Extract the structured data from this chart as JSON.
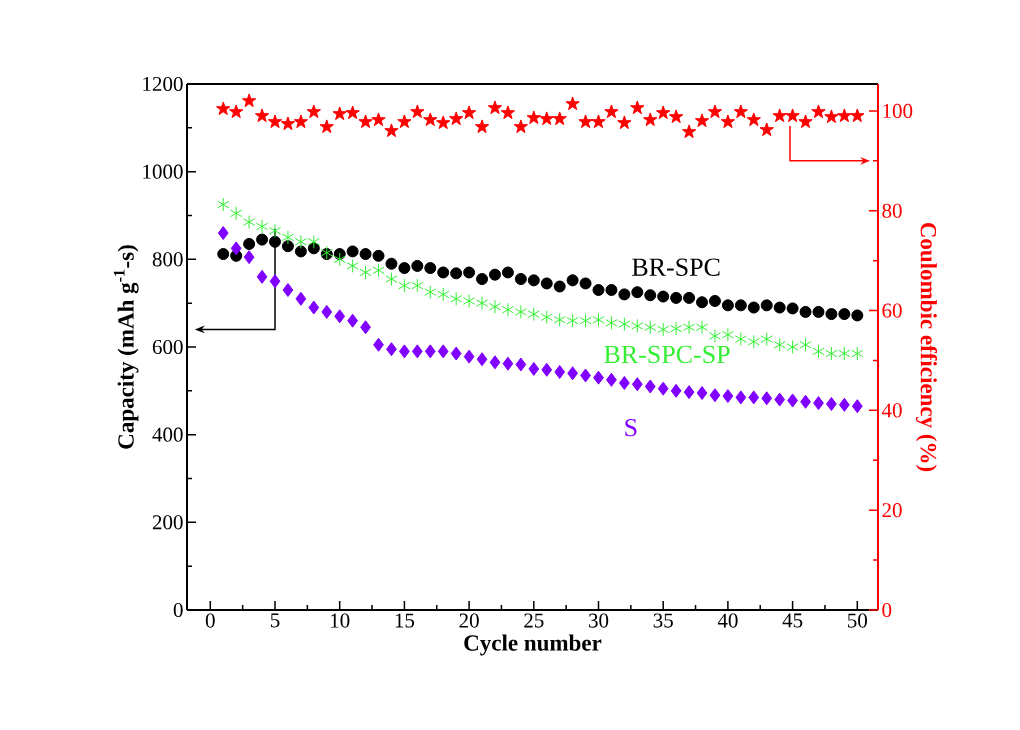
{
  "chart_data": {
    "type": "scatter",
    "xlabel": "Cycle number",
    "ylabel": "Capacity (mAh g$^{-1}$-s)",
    "y2label": "Coulombic efficiency (%)",
    "x": [
      1,
      2,
      3,
      4,
      5,
      6,
      7,
      8,
      9,
      10,
      11,
      12,
      13,
      14,
      15,
      16,
      17,
      18,
      19,
      20,
      21,
      22,
      23,
      24,
      25,
      26,
      27,
      28,
      29,
      30,
      31,
      32,
      33,
      34,
      35,
      36,
      37,
      38,
      39,
      40,
      41,
      42,
      43,
      44,
      45,
      46,
      47,
      48,
      49,
      50
    ],
    "xlim": [
      -1.8,
      51.6
    ],
    "xticks": [
      0,
      5,
      10,
      15,
      20,
      25,
      30,
      35,
      40,
      45,
      50
    ],
    "ylim": [
      0,
      1200
    ],
    "yticks": [
      0,
      200,
      400,
      600,
      800,
      1000,
      1200
    ],
    "y2lim": [
      0,
      105.4
    ],
    "y2ticks": [
      0,
      20,
      40,
      60,
      80,
      100
    ],
    "series": [
      {
        "name": "BR-SPC",
        "color": "#000000",
        "marker": "circle",
        "values": [
          812,
          808,
          835,
          845,
          840,
          830,
          818,
          825,
          812,
          812,
          818,
          812,
          808,
          790,
          780,
          785,
          780,
          770,
          768,
          770,
          755,
          765,
          770,
          755,
          752,
          745,
          738,
          752,
          745,
          730,
          730,
          720,
          725,
          718,
          715,
          712,
          712,
          702,
          705,
          695,
          695,
          690,
          695,
          690,
          688,
          680,
          680,
          675,
          675,
          672
        ]
      },
      {
        "name": "BR-SPC-SP",
        "color": "#33ee33",
        "marker": "cross",
        "values": [
          925,
          905,
          885,
          875,
          865,
          850,
          840,
          840,
          815,
          800,
          785,
          770,
          775,
          755,
          740,
          740,
          725,
          720,
          710,
          705,
          700,
          692,
          685,
          680,
          675,
          668,
          662,
          660,
          660,
          662,
          655,
          652,
          648,
          645,
          640,
          642,
          645,
          645,
          625,
          628,
          618,
          612,
          618,
          605,
          600,
          605,
          590,
          585,
          585,
          585
        ]
      },
      {
        "name": "S",
        "color": "#8000ff",
        "marker": "diamond",
        "values": [
          860,
          825,
          805,
          760,
          750,
          730,
          710,
          690,
          680,
          670,
          660,
          645,
          605,
          595,
          590,
          590,
          590,
          590,
          585,
          578,
          572,
          565,
          562,
          560,
          550,
          548,
          543,
          540,
          535,
          530,
          525,
          518,
          515,
          510,
          505,
          500,
          497,
          495,
          490,
          488,
          485,
          485,
          483,
          480,
          478,
          475,
          472,
          470,
          468,
          465
        ]
      },
      {
        "color": "#ff0000",
        "marker": "star",
        "axis": "y2",
        "values": [
          100.4,
          99.8,
          102,
          99,
          97.8,
          97.4,
          97.8,
          99.8,
          96.8,
          99.4,
          99.6,
          97.8,
          98.2,
          96,
          97.8,
          99.8,
          98.2,
          97.6,
          98.4,
          99.6,
          96.8,
          100.6,
          99.6,
          96.8,
          98.6,
          98.4,
          98.4,
          101.4,
          97.8,
          97.8,
          99.8,
          97.6,
          100.6,
          98.2,
          99.6,
          98.8,
          95.8,
          98,
          99.8,
          97.8,
          99.8,
          98.2,
          96.2,
          99,
          99,
          97.8,
          99.8,
          98.8,
          99,
          99
        ]
      }
    ]
  }
}
